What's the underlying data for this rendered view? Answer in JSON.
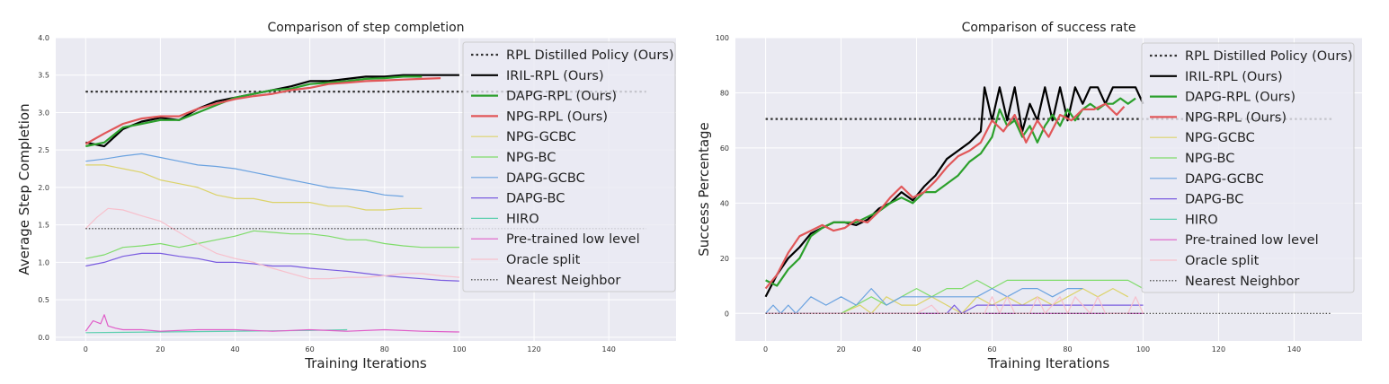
{
  "chart_data": [
    {
      "type": "line",
      "title": "Comparison of step completion",
      "xlabel": "Training Iterations",
      "ylabel": "Average Step Completion",
      "xlim": [
        -8,
        158
      ],
      "ylim": [
        -0.05,
        4.0
      ],
      "xticks": [
        0,
        20,
        40,
        60,
        80,
        100,
        120,
        140
      ],
      "yticks": [
        0.0,
        0.5,
        1.0,
        1.5,
        2.0,
        2.5,
        3.0,
        3.5,
        4.0
      ],
      "ytick_labels": [
        "0.0",
        "0.5",
        "1.0",
        "1.5",
        "2.0",
        "2.5",
        "3.0",
        "3.5",
        "4.0"
      ],
      "grid": true,
      "legend_position": "top-right",
      "series": [
        {
          "name": "RPL Distilled Policy (Ours)",
          "color": "#333333",
          "style": "dotted-thick",
          "x": [
            0,
            150
          ],
          "y": [
            3.28,
            3.28
          ]
        },
        {
          "name": "IRIL-RPL (Ours)",
          "color": "#000000",
          "style": "solid-thick",
          "x": [
            0,
            5,
            10,
            15,
            20,
            25,
            30,
            35,
            40,
            45,
            50,
            55,
            60,
            65,
            70,
            75,
            80,
            85,
            90,
            95,
            100
          ],
          "y": [
            2.6,
            2.55,
            2.78,
            2.88,
            2.93,
            2.9,
            3.05,
            3.15,
            3.2,
            3.25,
            3.3,
            3.35,
            3.42,
            3.42,
            3.45,
            3.48,
            3.48,
            3.5,
            3.5,
            3.5,
            3.5
          ]
        },
        {
          "name": "DAPG-RPL (Ours)",
          "color": "#2ca02c",
          "style": "solid-thick",
          "x": [
            0,
            5,
            10,
            15,
            20,
            25,
            30,
            35,
            40,
            45,
            50,
            55,
            60,
            65,
            70,
            75,
            80,
            85,
            90
          ],
          "y": [
            2.55,
            2.6,
            2.8,
            2.85,
            2.9,
            2.9,
            3.0,
            3.1,
            3.2,
            3.25,
            3.3,
            3.32,
            3.38,
            3.4,
            3.42,
            3.45,
            3.46,
            3.48,
            3.48
          ]
        },
        {
          "name": "NPG-RPL (Ours)",
          "color": "#e15759",
          "style": "solid-thick",
          "x": [
            0,
            5,
            10,
            15,
            20,
            25,
            30,
            35,
            40,
            45,
            50,
            55,
            60,
            65,
            70,
            75,
            80,
            85,
            90,
            95
          ],
          "y": [
            2.58,
            2.72,
            2.85,
            2.92,
            2.95,
            2.95,
            3.05,
            3.12,
            3.18,
            3.22,
            3.25,
            3.3,
            3.33,
            3.38,
            3.4,
            3.42,
            3.43,
            3.44,
            3.45,
            3.46
          ]
        },
        {
          "name": "NPG-GCBC",
          "color": "#dcd36a",
          "style": "thin",
          "x": [
            0,
            5,
            10,
            15,
            20,
            25,
            30,
            35,
            40,
            45,
            50,
            55,
            60,
            65,
            70,
            75,
            80,
            85,
            90
          ],
          "y": [
            2.3,
            2.3,
            2.25,
            2.2,
            2.1,
            2.05,
            2.0,
            1.9,
            1.85,
            1.85,
            1.8,
            1.8,
            1.8,
            1.75,
            1.75,
            1.7,
            1.7,
            1.72,
            1.72
          ]
        },
        {
          "name": "NPG-BC",
          "color": "#7fdc6a",
          "style": "thin",
          "x": [
            0,
            5,
            10,
            15,
            20,
            25,
            30,
            35,
            40,
            45,
            50,
            55,
            60,
            65,
            70,
            75,
            80,
            85,
            90,
            95,
            100
          ],
          "y": [
            1.05,
            1.1,
            1.2,
            1.22,
            1.25,
            1.2,
            1.25,
            1.3,
            1.35,
            1.42,
            1.4,
            1.38,
            1.38,
            1.35,
            1.3,
            1.3,
            1.25,
            1.22,
            1.2,
            1.2,
            1.2
          ]
        },
        {
          "name": "DAPG-GCBC",
          "color": "#6aa2e0",
          "style": "thin",
          "x": [
            0,
            5,
            10,
            15,
            20,
            25,
            30,
            35,
            40,
            45,
            50,
            55,
            60,
            65,
            70,
            75,
            80,
            85
          ],
          "y": [
            2.35,
            2.38,
            2.42,
            2.45,
            2.4,
            2.35,
            2.3,
            2.28,
            2.25,
            2.2,
            2.15,
            2.1,
            2.05,
            2.0,
            1.98,
            1.95,
            1.9,
            1.88
          ]
        },
        {
          "name": "DAPG-BC",
          "color": "#7a5ce0",
          "style": "thin",
          "x": [
            0,
            5,
            10,
            15,
            20,
            25,
            30,
            35,
            40,
            45,
            50,
            55,
            60,
            65,
            70,
            75,
            80,
            85,
            90,
            95,
            100
          ],
          "y": [
            0.95,
            1.0,
            1.08,
            1.12,
            1.12,
            1.08,
            1.05,
            1.0,
            1.0,
            0.98,
            0.95,
            0.95,
            0.92,
            0.9,
            0.88,
            0.85,
            0.82,
            0.8,
            0.78,
            0.76,
            0.75
          ]
        },
        {
          "name": "HIRO",
          "color": "#5fd0b0",
          "style": "thin",
          "x": [
            0,
            20,
            40,
            60,
            70
          ],
          "y": [
            0.06,
            0.07,
            0.08,
            0.09,
            0.1
          ]
        },
        {
          "name": "Pre-trained low level",
          "color": "#e05cc8",
          "style": "thin",
          "x": [
            0,
            2,
            4,
            5,
            6,
            8,
            10,
            15,
            20,
            30,
            40,
            50,
            60,
            70,
            80,
            90,
            100
          ],
          "y": [
            0.08,
            0.22,
            0.18,
            0.3,
            0.15,
            0.12,
            0.1,
            0.1,
            0.08,
            0.1,
            0.1,
            0.08,
            0.1,
            0.08,
            0.1,
            0.08,
            0.07
          ]
        },
        {
          "name": "Oracle split",
          "color": "#f7c0cc",
          "style": "thin",
          "x": [
            0,
            3,
            6,
            10,
            15,
            20,
            25,
            30,
            35,
            40,
            45,
            50,
            55,
            60,
            65,
            70,
            75,
            80,
            85,
            90,
            95,
            100
          ],
          "y": [
            1.45,
            1.6,
            1.72,
            1.7,
            1.62,
            1.55,
            1.4,
            1.25,
            1.12,
            1.05,
            1.0,
            0.92,
            0.85,
            0.78,
            0.78,
            0.8,
            0.8,
            0.82,
            0.85,
            0.85,
            0.82,
            0.8
          ]
        },
        {
          "name": "Nearest Neighbor",
          "color": "#333333",
          "style": "dotted-thin",
          "x": [
            0,
            150
          ],
          "y": [
            1.45,
            1.45
          ]
        }
      ]
    },
    {
      "type": "line",
      "title": "Comparison of success rate",
      "xlabel": "Training Iterations",
      "ylabel": "Success Percentage",
      "xlim": [
        -8,
        158
      ],
      "ylim": [
        -10,
        100
      ],
      "xticks": [
        0,
        20,
        40,
        60,
        80,
        100,
        120,
        140
      ],
      "yticks": [
        0,
        20,
        40,
        60,
        80,
        100
      ],
      "ytick_labels": [
        "0",
        "20",
        "40",
        "60",
        "80",
        "100"
      ],
      "grid": true,
      "legend_position": "top-right",
      "series": [
        {
          "name": "RPL Distilled Policy (Ours)",
          "color": "#333333",
          "style": "dotted-thick",
          "x": [
            0,
            150
          ],
          "y": [
            70.5,
            70.5
          ]
        },
        {
          "name": "IRIL-RPL (Ours)",
          "color": "#000000",
          "style": "solid-thick",
          "x": [
            0,
            3,
            6,
            9,
            12,
            15,
            18,
            21,
            24,
            27,
            30,
            33,
            36,
            39,
            42,
            45,
            48,
            51,
            54,
            57,
            58,
            60,
            62,
            64,
            66,
            68,
            70,
            72,
            74,
            76,
            78,
            80,
            82,
            84,
            86,
            88,
            90,
            92,
            94,
            96,
            98,
            100
          ],
          "y": [
            6,
            14,
            20,
            24,
            29,
            31,
            33,
            33,
            32,
            34,
            38,
            40,
            44,
            41,
            46,
            50,
            56,
            59,
            62,
            66,
            82,
            70,
            82,
            70,
            82,
            66,
            76,
            70,
            82,
            70,
            82,
            70,
            82,
            76,
            82,
            82,
            76,
            82,
            82,
            82,
            82,
            76
          ]
        },
        {
          "name": "DAPG-RPL (Ours)",
          "color": "#2ca02c",
          "style": "solid-thick",
          "x": [
            0,
            3,
            6,
            9,
            12,
            15,
            18,
            21,
            24,
            27,
            30,
            33,
            36,
            39,
            42,
            45,
            48,
            51,
            54,
            57,
            60,
            62,
            64,
            66,
            68,
            70,
            72,
            74,
            76,
            78,
            80,
            82,
            84,
            86,
            88,
            90,
            92,
            94,
            96,
            98
          ],
          "y": [
            12,
            10,
            16,
            20,
            28,
            31,
            33,
            33,
            33,
            35,
            37,
            40,
            42,
            40,
            44,
            44,
            47,
            50,
            55,
            58,
            64,
            74,
            68,
            70,
            64,
            68,
            62,
            68,
            72,
            68,
            74,
            70,
            74,
            76,
            74,
            76,
            76,
            78,
            76,
            78
          ]
        },
        {
          "name": "NPG-RPL (Ours)",
          "color": "#e15759",
          "style": "solid-thick",
          "x": [
            0,
            3,
            6,
            9,
            12,
            15,
            18,
            21,
            24,
            27,
            30,
            33,
            36,
            39,
            42,
            45,
            48,
            51,
            54,
            57,
            60,
            63,
            66,
            69,
            72,
            75,
            78,
            81,
            84,
            87,
            90,
            93,
            95
          ],
          "y": [
            9,
            14,
            22,
            28,
            30,
            32,
            30,
            31,
            34,
            33,
            37,
            42,
            46,
            42,
            44,
            48,
            53,
            57,
            59,
            62,
            70,
            66,
            72,
            62,
            70,
            64,
            72,
            70,
            74,
            74,
            76,
            72,
            75
          ]
        },
        {
          "name": "NPG-GCBC",
          "color": "#dcd36a",
          "style": "thin",
          "x": [
            0,
            20,
            25,
            28,
            32,
            36,
            40,
            44,
            48,
            52,
            56,
            60,
            64,
            68,
            72,
            76,
            80,
            84,
            88,
            92,
            96
          ],
          "y": [
            0,
            0,
            3,
            0,
            6,
            3,
            3,
            6,
            3,
            0,
            6,
            3,
            6,
            3,
            6,
            3,
            6,
            9,
            6,
            9,
            6
          ]
        },
        {
          "name": "NPG-BC",
          "color": "#7fdc6a",
          "style": "thin",
          "x": [
            0,
            20,
            24,
            28,
            32,
            36,
            40,
            44,
            48,
            52,
            56,
            60,
            64,
            68,
            72,
            76,
            80,
            84,
            88,
            92,
            96,
            100
          ],
          "y": [
            0,
            0,
            3,
            6,
            3,
            6,
            9,
            6,
            9,
            9,
            12,
            9,
            12,
            12,
            12,
            12,
            12,
            12,
            12,
            12,
            12,
            9
          ]
        },
        {
          "name": "DAPG-GCBC",
          "color": "#6aa2e0",
          "style": "thin",
          "x": [
            0,
            2,
            4,
            6,
            8,
            12,
            16,
            20,
            24,
            28,
            32,
            36,
            40,
            44,
            48,
            52,
            56,
            60,
            64,
            68,
            72,
            76,
            80,
            84
          ],
          "y": [
            0,
            3,
            0,
            3,
            0,
            6,
            3,
            6,
            3,
            9,
            3,
            6,
            6,
            6,
            6,
            6,
            6,
            9,
            6,
            9,
            9,
            6,
            9,
            9
          ]
        },
        {
          "name": "DAPG-BC",
          "color": "#7a5ce0",
          "style": "thin",
          "x": [
            0,
            40,
            44,
            48,
            50,
            52,
            56,
            60,
            70,
            80,
            90,
            100
          ],
          "y": [
            0,
            0,
            0,
            0,
            3,
            0,
            3,
            3,
            3,
            3,
            3,
            3
          ]
        },
        {
          "name": "HIRO",
          "color": "#5fd0b0",
          "style": "thin",
          "x": [
            0,
            100
          ],
          "y": [
            0,
            0
          ]
        },
        {
          "name": "Pre-trained low level",
          "color": "#e05cc8",
          "style": "thin",
          "x": [
            0,
            100
          ],
          "y": [
            0,
            0
          ]
        },
        {
          "name": "Oracle split",
          "color": "#f7c0cc",
          "style": "thin",
          "x": [
            0,
            40,
            44,
            46,
            48,
            58,
            60,
            62,
            64,
            66,
            70,
            72,
            74,
            78,
            80,
            82,
            86,
            88,
            90,
            96,
            98,
            100
          ],
          "y": [
            0,
            0,
            3,
            0,
            0,
            0,
            6,
            0,
            6,
            0,
            0,
            6,
            0,
            6,
            0,
            6,
            0,
            6,
            0,
            0,
            6,
            0
          ]
        },
        {
          "name": "Nearest Neighbor",
          "color": "#333333",
          "style": "dotted-thin",
          "x": [
            0,
            150
          ],
          "y": [
            0,
            0
          ]
        }
      ]
    }
  ]
}
